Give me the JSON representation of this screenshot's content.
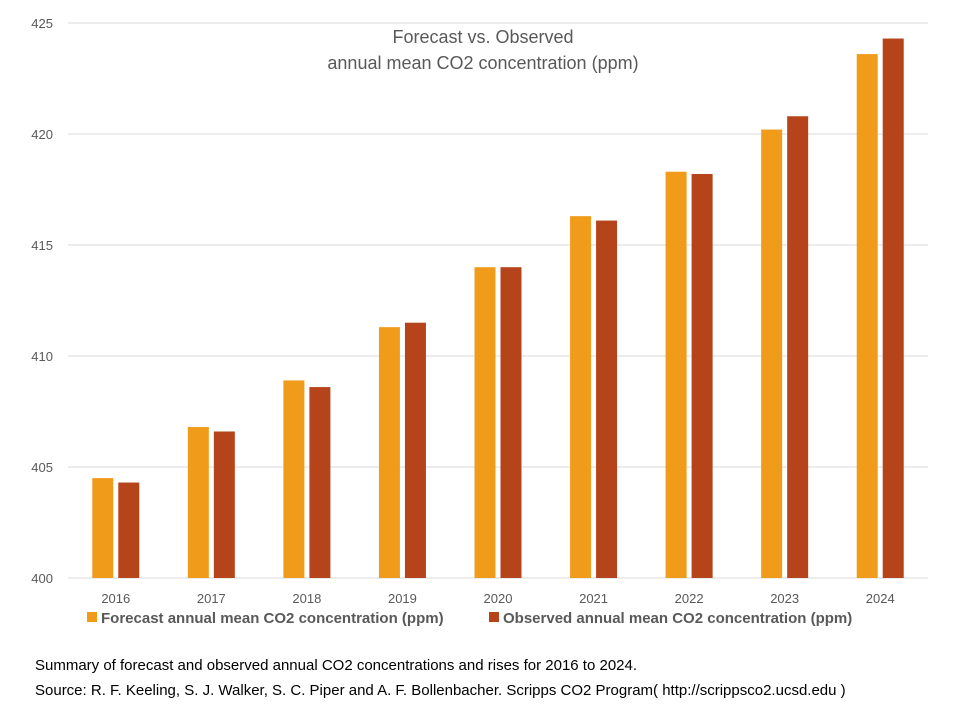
{
  "chart_data": {
    "type": "bar",
    "title": [
      "Forecast vs. Observed",
      "annual mean CO2 concentration (ppm)"
    ],
    "categories": [
      "2016",
      "2017",
      "2018",
      "2019",
      "2020",
      "2021",
      "2022",
      "2023",
      "2024"
    ],
    "series": [
      {
        "name": "Forecast annual mean CO2 concentration (ppm)",
        "color": "#f09c1a",
        "values": [
          404.5,
          406.8,
          408.9,
          411.3,
          414.0,
          416.3,
          418.3,
          420.2,
          423.6
        ]
      },
      {
        "name": "Observed annual mean CO2 concentration (ppm)",
        "color": "#b5441a",
        "values": [
          404.3,
          406.6,
          408.6,
          411.5,
          414.0,
          416.1,
          418.2,
          420.8,
          424.3
        ]
      }
    ],
    "yticks": [
      400,
      405,
      410,
      415,
      420,
      425
    ],
    "ylim": [
      400,
      425
    ],
    "grid": true,
    "legend_position": "bottom"
  },
  "caption": {
    "line1": "Summary of forecast and observed annual CO2 concentrations and rises for 2016 to 2024.",
    "line2": "Source: R. F. Keeling, S. J. Walker, S. C. Piper and A. F. Bollenbacher. Scripps CO2 Program( http://scrippsco2.ucsd.edu )"
  }
}
